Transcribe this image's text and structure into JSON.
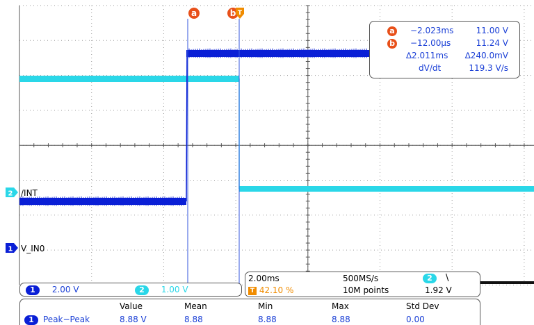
{
  "colors": {
    "ch1": "#0a1fd6",
    "ch2": "#2ad7e8",
    "cursor": "#3355dd",
    "cursor_marker": "#e8501a",
    "trigger": "#f08c00",
    "grid": "#9a9a9a"
  },
  "cursors": {
    "a_label": "a",
    "b_label": "b",
    "a_time": "−2.023ms",
    "a_value": "11.00 V",
    "b_time": "−12.00μs",
    "b_value": "11.24 V",
    "delta_time": "∆2.011ms",
    "delta_value": "∆240.0mV",
    "dvdt_label": "dV/dt",
    "dvdt_value": "119.3 V/s"
  },
  "channels": {
    "ch2_number": "2",
    "ch2_label": "/INT",
    "ch1_number": "1",
    "ch1_label": "V_IN0",
    "ch1_scale_number": "1",
    "ch1_scale": "2.00 V",
    "ch2_scale_number": "2",
    "ch2_scale": "1.00 V"
  },
  "timebase": {
    "horizontal_scale": "2.00ms",
    "sample_rate": "500MS/s",
    "trigger_icon": "T",
    "trigger_position": "42.10 %",
    "record_length": "10M points",
    "trigger_source": "2",
    "trigger_slope_icon": "falling-edge-icon",
    "trigger_slope_glyph": "\\",
    "trigger_level": "1.92 V"
  },
  "measurements": {
    "headers": [
      "Value",
      "Mean",
      "Min",
      "Max",
      "Std Dev"
    ],
    "rows": [
      {
        "source": "1",
        "name": "Peak−Peak",
        "value": "8.88 V",
        "mean": "8.88",
        "min": "8.88",
        "max": "8.88",
        "std_dev": "0.00"
      }
    ]
  }
}
